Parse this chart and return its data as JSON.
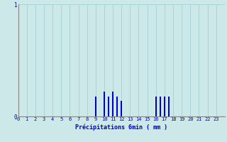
{
  "xlabel": "Précipitations 6min ( mm )",
  "background_color": "#cce8e8",
  "bar_color": "#0000cc",
  "grid_color": "#aad4d4",
  "axis_color": "#888888",
  "text_color": "#0000cc",
  "xlim": [
    0,
    24
  ],
  "ylim": [
    0,
    1.0
  ],
  "yticks": [
    0,
    1
  ],
  "ytick_labels": [
    "0",
    "1"
  ],
  "xticks": [
    0,
    1,
    2,
    3,
    4,
    5,
    6,
    7,
    8,
    9,
    10,
    11,
    12,
    13,
    14,
    15,
    16,
    17,
    18,
    19,
    20,
    21,
    22,
    23
  ],
  "bar_positions": [
    9,
    10,
    10.5,
    11,
    11.5,
    12,
    16,
    16.5,
    17,
    17.5
  ],
  "bar_heights": [
    0.18,
    0.22,
    0.18,
    0.22,
    0.18,
    0.14,
    0.18,
    0.18,
    0.18,
    0.18
  ],
  "bar_width": 0.18
}
